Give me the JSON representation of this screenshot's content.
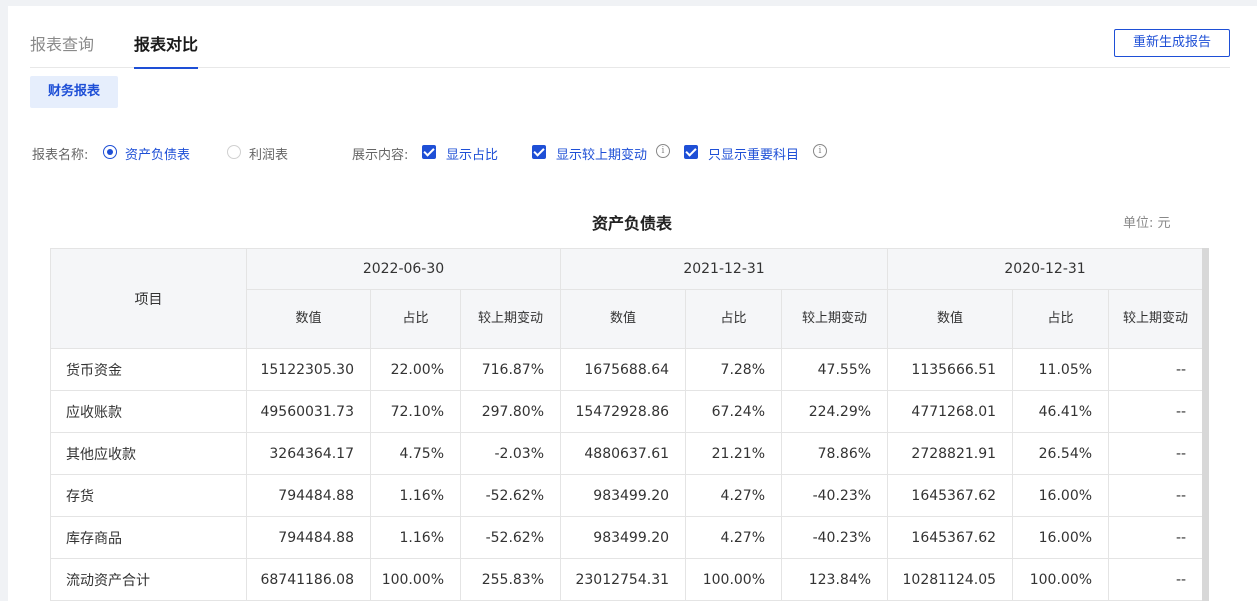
{
  "tabs": [
    {
      "label": "报表查询",
      "active": false
    },
    {
      "label": "报表对比",
      "active": true
    }
  ],
  "regenerate_button": "重新生成报告",
  "report_button": "财务报表",
  "options": {
    "report_name_label": "报表名称:",
    "report_types": [
      {
        "label": "资产负债表",
        "selected": true
      },
      {
        "label": "利润表",
        "selected": false
      }
    ],
    "display_label": "展示内容:",
    "checkboxes": [
      {
        "label": "显示占比",
        "checked": true,
        "info": false
      },
      {
        "label": "显示较上期变动",
        "checked": true,
        "info": true
      },
      {
        "label": "只显示重要科目",
        "checked": true,
        "info": true
      }
    ],
    "info_glyph": "i"
  },
  "table": {
    "title": "资产负债表",
    "unit": "单位: 元",
    "item_header": "项目",
    "periods": [
      "2022-06-30",
      "2021-12-31",
      "2020-12-31"
    ],
    "sub_headers": [
      "数值",
      "占比",
      "较上期变动"
    ],
    "rows": [
      {
        "name": "货币资金",
        "cells": [
          "15122305.30",
          "22.00%",
          "716.87%",
          "1675688.64",
          "7.28%",
          "47.55%",
          "1135666.51",
          "11.05%",
          "--"
        ]
      },
      {
        "name": "应收账款",
        "cells": [
          "49560031.73",
          "72.10%",
          "297.80%",
          "15472928.86",
          "67.24%",
          "224.29%",
          "4771268.01",
          "46.41%",
          "--"
        ]
      },
      {
        "name": "其他应收款",
        "cells": [
          "3264364.17",
          "4.75%",
          "-2.03%",
          "4880637.61",
          "21.21%",
          "78.86%",
          "2728821.91",
          "26.54%",
          "--"
        ]
      },
      {
        "name": "存货",
        "cells": [
          "794484.88",
          "1.16%",
          "-52.62%",
          "983499.20",
          "4.27%",
          "-40.23%",
          "1645367.62",
          "16.00%",
          "--"
        ]
      },
      {
        "name": "库存商品",
        "cells": [
          "794484.88",
          "1.16%",
          "-52.62%",
          "983499.20",
          "4.27%",
          "-40.23%",
          "1645367.62",
          "16.00%",
          "--"
        ]
      },
      {
        "name": "流动资产合计",
        "cells": [
          "68741186.08",
          "100.00%",
          "255.83%",
          "23012754.31",
          "100.00%",
          "123.84%",
          "10281124.05",
          "100.00%",
          "--"
        ]
      }
    ]
  },
  "colors": {
    "accent": "#1e4fd6",
    "header_bg": "#f5f6f8"
  }
}
